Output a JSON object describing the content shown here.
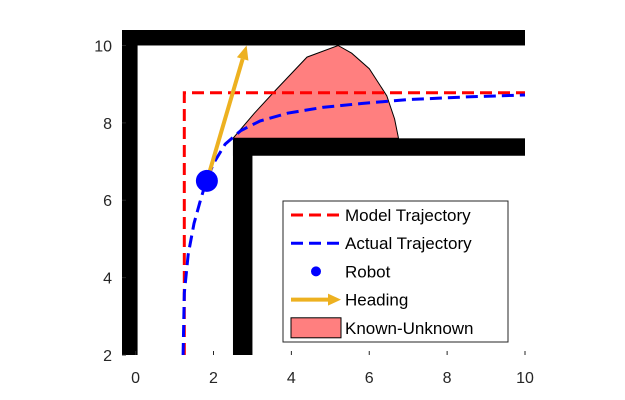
{
  "chart_data": {
    "type": "line",
    "title": "",
    "xlabel": "",
    "ylabel": "",
    "xlim": [
      -0.35,
      10
    ],
    "ylim": [
      2,
      10.4
    ],
    "x_ticks": [
      0,
      2,
      4,
      6,
      8,
      10
    ],
    "y_ticks": [
      2,
      4,
      6,
      8,
      10
    ],
    "x_tick_labels": [
      "0",
      "2",
      "4",
      "6",
      "8",
      "10"
    ],
    "y_tick_labels": [
      "2",
      "4",
      "6",
      "8",
      "10"
    ],
    "grid": false,
    "legend_position": "bottom-right",
    "walls": [
      {
        "x": [
          -0.35,
          0.05
        ],
        "y": [
          2,
          10.4
        ]
      },
      {
        "x": [
          -0.35,
          10
        ],
        "y": [
          10.0,
          10.4
        ]
      },
      {
        "x": [
          2.5,
          3.0
        ],
        "y": [
          2,
          7.6
        ]
      },
      {
        "x": [
          2.5,
          10
        ],
        "y": [
          7.15,
          7.6
        ]
      }
    ],
    "series": [
      {
        "name": "Model Trajectory",
        "kind": "dashed-line",
        "color": "#ff0000",
        "x": [
          1.25,
          1.25,
          10
        ],
        "y": [
          2,
          8.78,
          8.78
        ]
      },
      {
        "name": "Actual Trajectory",
        "kind": "dashed-line",
        "color": "#0000ff",
        "x": [
          1.22,
          1.25,
          1.35,
          1.5,
          1.65,
          1.8,
          2.0,
          2.3,
          2.7,
          3.2,
          3.9,
          4.8,
          5.8,
          7.0,
          8.5,
          10
        ],
        "y": [
          2,
          3.6,
          4.6,
          5.4,
          5.95,
          6.45,
          6.95,
          7.45,
          7.8,
          8.05,
          8.25,
          8.4,
          8.5,
          8.6,
          8.67,
          8.72
        ]
      },
      {
        "name": "Robot",
        "kind": "marker",
        "color": "#0000ff",
        "x": [
          1.83
        ],
        "y": [
          6.5
        ]
      },
      {
        "name": "Heading",
        "kind": "arrow",
        "color": "#edb120",
        "x": [
          1.83,
          2.85
        ],
        "y": [
          6.5,
          10.0
        ]
      },
      {
        "name": "Known-Unknown",
        "kind": "region",
        "color": "#ff7f7f",
        "x": [
          2.5,
          3.05,
          3.6,
          4.4,
          5.2,
          5.55,
          6.0,
          6.45,
          6.65,
          6.75,
          2.5
        ],
        "y": [
          7.6,
          8.25,
          8.85,
          9.7,
          10.0,
          9.8,
          9.4,
          8.7,
          8.1,
          7.6,
          7.6
        ]
      }
    ]
  },
  "legend": {
    "items": [
      {
        "label": "Model Trajectory",
        "kind": "dashed-line",
        "color": "#ff0000"
      },
      {
        "label": "Actual Trajectory",
        "kind": "dashed-line",
        "color": "#0000ff"
      },
      {
        "label": "Robot",
        "kind": "marker",
        "color": "#0000ff"
      },
      {
        "label": "Heading",
        "kind": "arrow",
        "color": "#edb120"
      },
      {
        "label": "Known-Unknown",
        "kind": "region",
        "color": "#ff7f7f"
      }
    ]
  }
}
